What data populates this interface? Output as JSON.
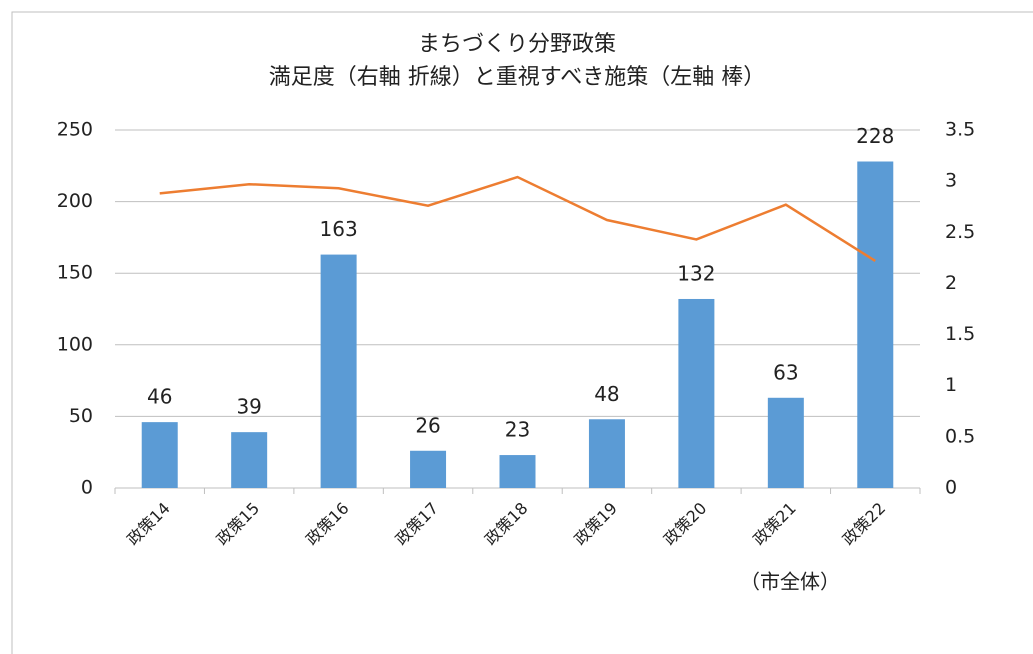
{
  "chart_data": {
    "type": "bar",
    "title": [
      "まちづくり分野政策",
      "満足度（右軸 折線）と重視すべき施策（左軸 棒）"
    ],
    "categories": [
      "政策14",
      "政策15",
      "政策16",
      "政策17",
      "政策18",
      "政策19",
      "政策20",
      "政策21",
      "政策22"
    ],
    "series": [
      {
        "type": "bar",
        "color": "#5b9bd5",
        "values": [
          46,
          39,
          163,
          26,
          23,
          48,
          132,
          63,
          228
        ]
      },
      {
        "type": "line",
        "axis": "y2",
        "color": "#ed7d31",
        "values": [
          2.88,
          2.97,
          2.93,
          2.76,
          3.04,
          2.62,
          2.43,
          2.77,
          2.22
        ]
      }
    ],
    "ylim": [
      0,
      250
    ],
    "yticks": [
      0,
      50,
      100,
      150,
      200,
      250
    ],
    "y2lim": [
      0,
      3.5
    ],
    "y2ticks": [
      0,
      0.5,
      1,
      1.5,
      2,
      2.5,
      3,
      3.5
    ],
    "grid": true,
    "annotation": "（市全体）"
  }
}
